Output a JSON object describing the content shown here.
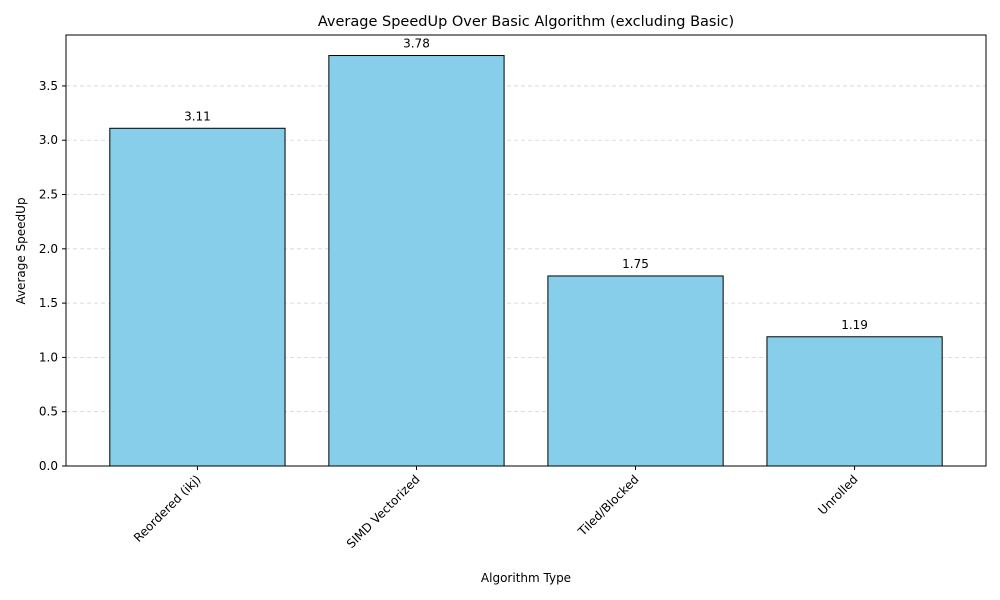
{
  "chart_data": {
    "type": "bar",
    "title": "Average SpeedUp Over Basic Algorithm (excluding Basic)",
    "xlabel": "Algorithm Type",
    "ylabel": "Average SpeedUp",
    "categories": [
      "Reordered (ikj)",
      "SIMD Vectorized",
      "Tiled/Blocked",
      "Unrolled"
    ],
    "values": [
      3.11,
      3.78,
      1.75,
      1.19
    ],
    "data_labels": [
      "3.11",
      "3.78",
      "1.75",
      "1.19"
    ],
    "ylim": [
      0,
      3.969
    ],
    "yticks": [
      0.0,
      0.5,
      1.0,
      1.5,
      2.0,
      2.5,
      3.0,
      3.5
    ],
    "ytick_labels": [
      "0.0",
      "0.5",
      "1.0",
      "1.5",
      "2.0",
      "2.5",
      "3.0",
      "3.5"
    ],
    "grid": {
      "y": true,
      "x": false,
      "style": "dashed"
    },
    "xtick_rotation": 45,
    "bar_color": "#87CEEB",
    "bar_edge_color": "#000000"
  }
}
